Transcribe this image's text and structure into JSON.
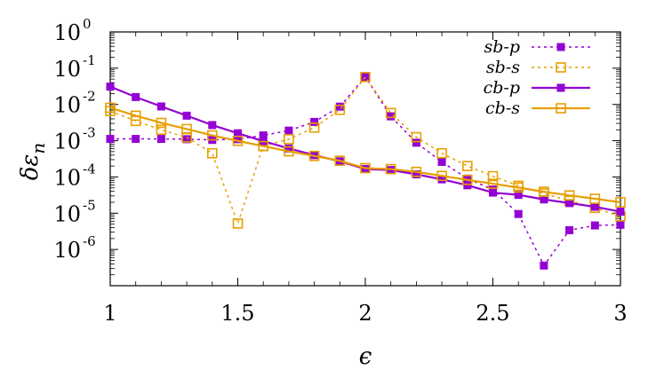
{
  "chart_data": {
    "type": "line",
    "xlabel": "ϵ",
    "ylabel": "δε_n",
    "xlim": [
      1,
      3
    ],
    "ylim_log10": [
      -7,
      0
    ],
    "yscale": "log",
    "grid": false,
    "legend_position": "top-right",
    "x_ticks": [
      "1",
      "1.5",
      "2",
      "2.5",
      "3"
    ],
    "y_ticks": [
      {
        "base": "10",
        "exp": "0"
      },
      {
        "base": "10",
        "exp": "-1"
      },
      {
        "base": "10",
        "exp": "-2"
      },
      {
        "base": "10",
        "exp": "-3"
      },
      {
        "base": "10",
        "exp": "-4"
      },
      {
        "base": "10",
        "exp": "-5"
      },
      {
        "base": "10",
        "exp": "-6"
      }
    ],
    "x": [
      1.0,
      1.1,
      1.2,
      1.3,
      1.4,
      1.5,
      1.6,
      1.7,
      1.8,
      1.9,
      2.0,
      2.1,
      2.2,
      2.3,
      2.4,
      2.5,
      2.6,
      2.7,
      2.8,
      2.9,
      3.0
    ],
    "series": [
      {
        "name": "sb-p",
        "color": "#9400d3",
        "line": "dotted",
        "marker": "filled-square",
        "values": [
          0.00112,
          0.00112,
          0.00112,
          0.0011,
          0.00105,
          0.0011,
          0.0014,
          0.0019,
          0.0033,
          0.0087,
          0.058,
          0.0047,
          0.00088,
          0.00026,
          9e-05,
          4.5e-05,
          9.5e-06,
          3.6e-07,
          3.4e-06,
          4.6e-06,
          4.8e-06
        ]
      },
      {
        "name": "sb-s",
        "color": "#e69f00",
        "line": "dotted",
        "marker": "open-square",
        "values": [
          0.0066,
          0.0035,
          0.002,
          0.00123,
          0.00045,
          5.2e-06,
          0.00072,
          0.0011,
          0.0023,
          0.0071,
          0.057,
          0.0058,
          0.00125,
          0.00045,
          0.0002,
          0.000105,
          5.7e-05,
          3.5e-05,
          2.2e-05,
          1.4e-05,
          8.2e-06
        ]
      },
      {
        "name": "cb-p",
        "color": "#9400d3",
        "line": "solid",
        "marker": "filled-square",
        "values": [
          0.031,
          0.016,
          0.0088,
          0.0049,
          0.0027,
          0.0016,
          0.00097,
          0.00061,
          0.0004,
          0.00027,
          0.000165,
          0.000155,
          0.000118,
          8.6e-05,
          5.9e-05,
          3.7e-05,
          3.2e-05,
          2.4e-05,
          1.9e-05,
          1.5e-05,
          1.1e-05
        ]
      },
      {
        "name": "cb-s",
        "color": "#e69f00",
        "line": "solid",
        "marker": "open-square",
        "values": [
          0.0081,
          0.0049,
          0.0031,
          0.0021,
          0.0014,
          0.00099,
          0.00071,
          0.00051,
          0.00038,
          0.00028,
          0.000175,
          0.000165,
          0.000138,
          0.000107,
          8.3e-05,
          6.5e-05,
          5.1e-05,
          3.9e-05,
          3.1e-05,
          2.5e-05,
          2e-05
        ]
      }
    ]
  }
}
